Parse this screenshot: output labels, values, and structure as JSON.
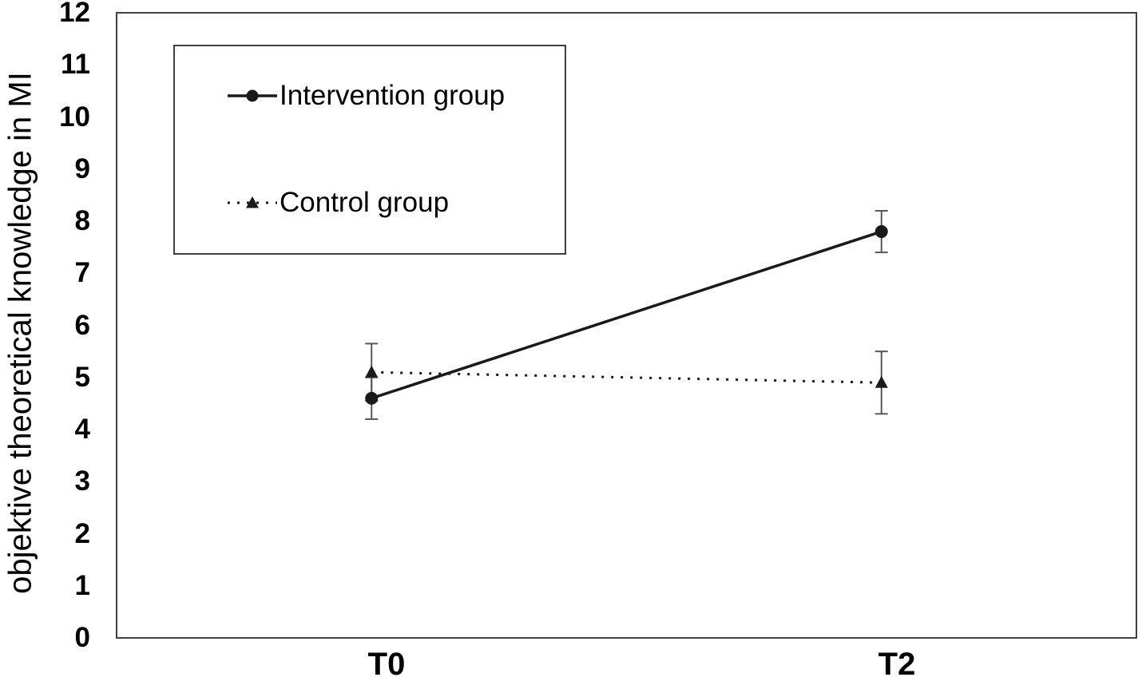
{
  "chart_data": {
    "type": "line",
    "title": "",
    "xlabel": "",
    "ylabel": "objektive theoretical knowledge in MI",
    "categories": [
      "T0",
      "T2"
    ],
    "ylim": [
      0,
      12
    ],
    "yticks": [
      0,
      1,
      2,
      3,
      4,
      5,
      6,
      7,
      8,
      9,
      10,
      11,
      12
    ],
    "grid": false,
    "legend_position": "top-left",
    "error_bar_color": "#595959",
    "axis_border_color": "#404040",
    "series": [
      {
        "name": "Intervention group",
        "values": [
          4.6,
          7.8
        ],
        "errors": [
          0.4,
          0.4
        ],
        "line_style": "solid",
        "marker": "circle",
        "color": "#1a1a1a"
      },
      {
        "name": "Control group",
        "values": [
          5.1,
          4.9
        ],
        "errors": [
          0.55,
          0.6
        ],
        "line_style": "dotted",
        "marker": "triangle",
        "color": "#1a1a1a"
      }
    ]
  }
}
